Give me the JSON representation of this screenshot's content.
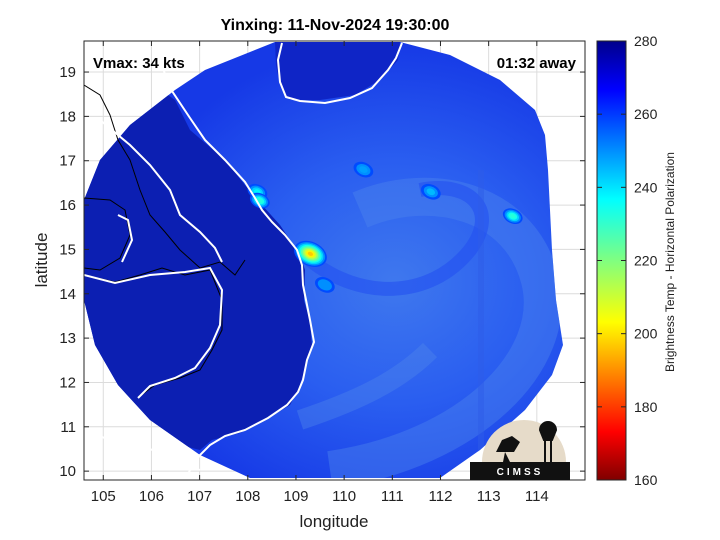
{
  "chart_data": {
    "type": "heatmap",
    "title": "Yinxing: 11-Nov-2024 19:30:00",
    "annotations": {
      "vmax": "Vmax: 34 kts",
      "timing": "01:32 away"
    },
    "xlabel": "longitude",
    "ylabel": "latitude",
    "xlim": [
      104.6,
      115.0
    ],
    "ylim": [
      9.8,
      19.7
    ],
    "xticks": [
      105,
      106,
      107,
      108,
      109,
      110,
      111,
      112,
      113,
      114
    ],
    "yticks": [
      10,
      11,
      12,
      13,
      14,
      15,
      16,
      17,
      18,
      19
    ],
    "grid": true,
    "colorbar": {
      "label": "Brightness Temp - Horizontal Polarization",
      "range": [
        160,
        280
      ],
      "ticks": [
        160,
        180,
        200,
        220,
        240,
        260,
        280
      ],
      "colormap": "jet"
    },
    "storm_center": {
      "lon": 109.3,
      "lat": 14.9,
      "value": 197
    },
    "features": [
      {
        "lon": 109.3,
        "lat": 14.9,
        "value": 197
      },
      {
        "lon": 108.2,
        "lat": 16.3,
        "value": 238
      },
      {
        "lon": 108.25,
        "lat": 16.1,
        "value": 232
      },
      {
        "lon": 110.4,
        "lat": 16.8,
        "value": 248
      },
      {
        "lon": 111.8,
        "lat": 16.3,
        "value": 245
      },
      {
        "lon": 113.5,
        "lat": 15.75,
        "value": 232
      },
      {
        "lon": 109.6,
        "lat": 14.2,
        "value": 250
      }
    ],
    "logo": "CIMSS"
  }
}
